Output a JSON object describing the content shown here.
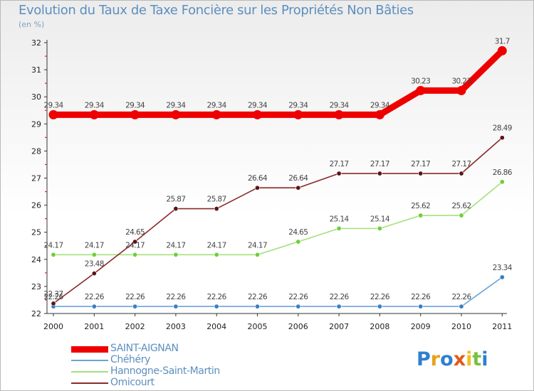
{
  "chart_data": {
    "type": "line",
    "title": "Evolution du Taux de Taxe Foncière sur les Propriétés Non Bâties",
    "subtitle": "(en %)",
    "x": [
      "2000",
      "2001",
      "2002",
      "2003",
      "2004",
      "2005",
      "2006",
      "2007",
      "2008",
      "2009",
      "2010",
      "2011"
    ],
    "ylim": [
      22,
      32
    ],
    "yticks": [
      "22",
      "23",
      "24",
      "25",
      "26",
      "27",
      "28",
      "29",
      "30",
      "31",
      "32"
    ],
    "series": [
      {
        "name": "SAINT-AIGNAN",
        "color": "#ee0000",
        "values": [
          29.34,
          29.34,
          29.34,
          29.34,
          29.34,
          29.34,
          29.34,
          29.34,
          29.34,
          30.23,
          30.23,
          31.7
        ],
        "labels": [
          "29.34",
          "29.34",
          "29.34",
          "29.34",
          "29.34",
          "29.34",
          "29.34",
          "29.34",
          "29.34",
          "30.23",
          "30.23",
          "31.7"
        ]
      },
      {
        "name": "Chéhéry",
        "color": "#6ba3d6",
        "marker": "#3a7fc0",
        "values": [
          22.26,
          22.26,
          22.26,
          22.26,
          22.26,
          22.26,
          22.26,
          22.26,
          22.26,
          22.26,
          22.26,
          23.34
        ],
        "labels": [
          "22.26",
          "22.26",
          "22.26",
          "22.26",
          "22.26",
          "22.26",
          "22.26",
          "22.26",
          "22.26",
          "22.26",
          "22.26",
          "23.34"
        ]
      },
      {
        "name": "Hannogne-Saint-Martin",
        "color": "#a6e07a",
        "marker": "#6fcf3a",
        "values": [
          24.17,
          24.17,
          24.17,
          24.17,
          24.17,
          24.17,
          24.65,
          25.14,
          25.14,
          25.62,
          25.62,
          26.86
        ],
        "labels": [
          "24.17",
          "24.17",
          "24.17",
          "24.17",
          "24.17",
          "24.17",
          "24.65",
          "25.14",
          "25.14",
          "25.62",
          "25.62",
          "26.86"
        ]
      },
      {
        "name": "Omicourt",
        "color": "#8a2a2a",
        "marker": "#5a1616",
        "values": [
          22.37,
          23.48,
          24.65,
          25.87,
          25.87,
          26.64,
          26.64,
          27.17,
          27.17,
          27.17,
          27.17,
          28.49
        ],
        "labels": [
          "22.37",
          "23.48",
          "24.65",
          "25.87",
          "25.87",
          "26.64",
          "26.64",
          "27.17",
          "27.17",
          "27.17",
          "27.17",
          "28.49"
        ]
      }
    ],
    "legend_position": "bottom-left",
    "grid": false
  },
  "logo": {
    "text": "Proxiti",
    "letters": [
      "P",
      "r",
      "o",
      "x",
      "i",
      "t",
      "i"
    ]
  }
}
